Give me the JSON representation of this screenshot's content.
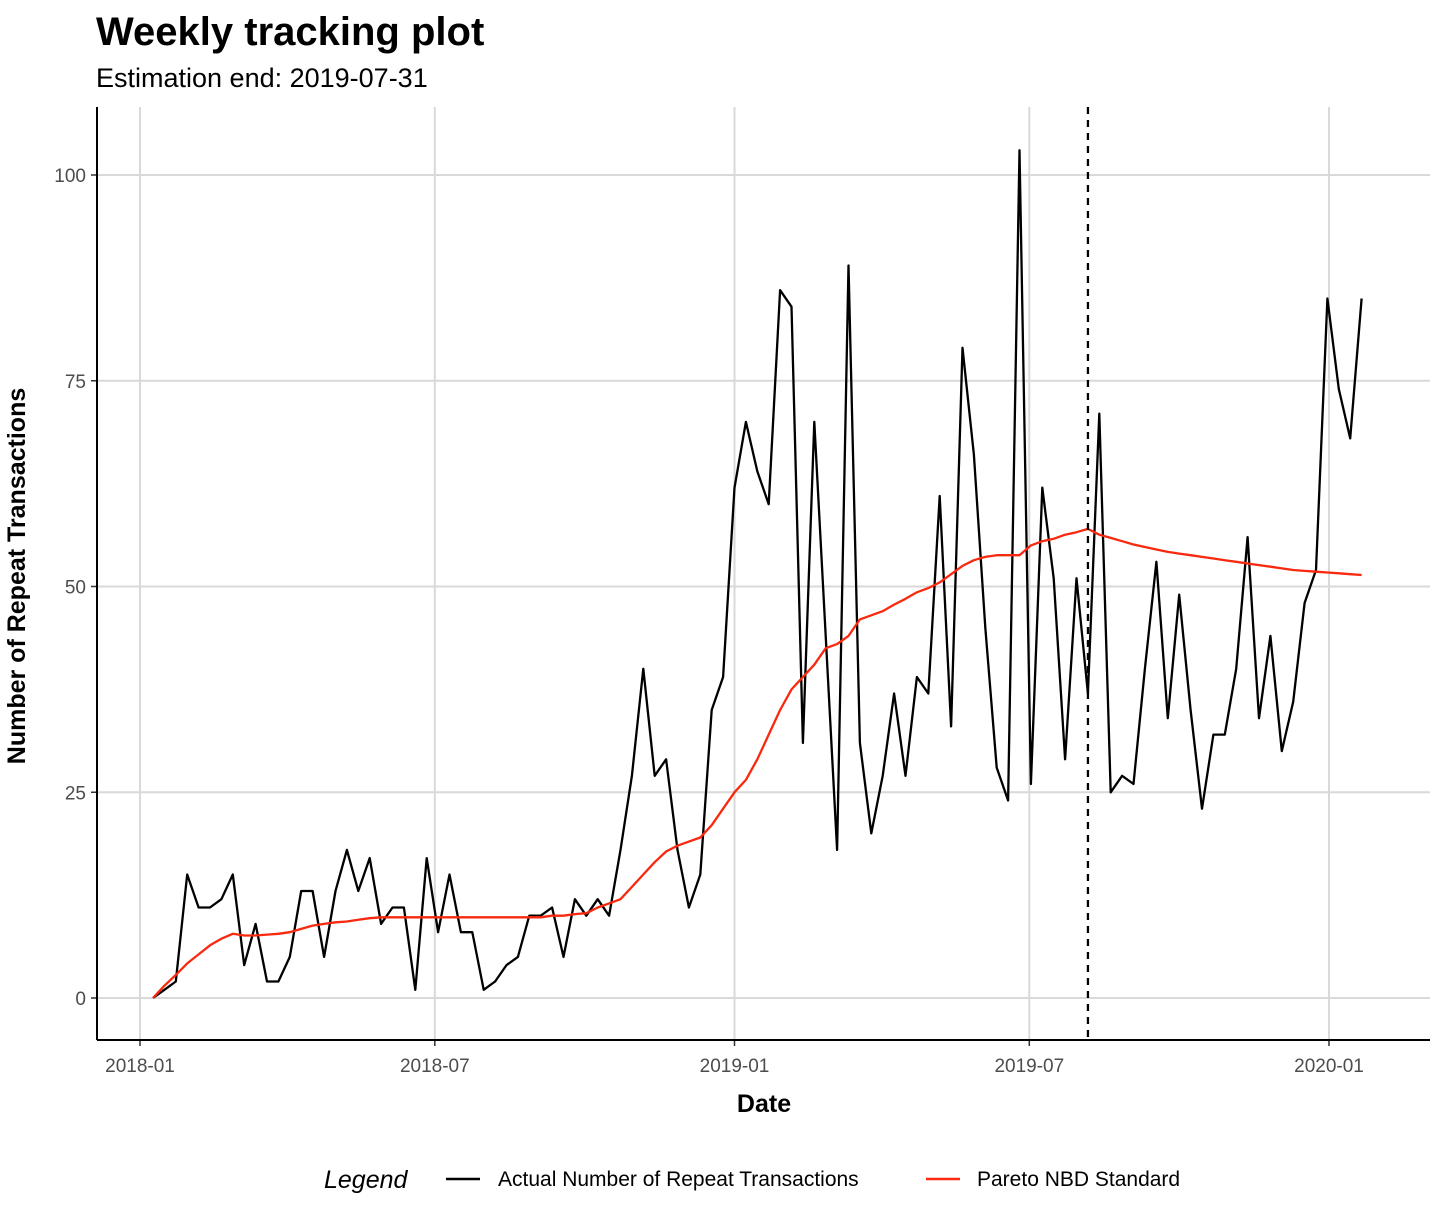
{
  "chart_data": {
    "type": "line",
    "title": "Weekly tracking plot",
    "subtitle": "Estimation end: 2019-07-31",
    "xlabel": "Date",
    "ylabel": "Number of Repeat Transactions",
    "x_ticks": [
      "2018-01",
      "2018-07",
      "2019-01",
      "2019-07",
      "2020-01"
    ],
    "y_ticks": [
      "0",
      "25",
      "50",
      "75",
      "100"
    ],
    "ylim": [
      -5,
      108
    ],
    "grid": true,
    "legend_position": "bottom",
    "legend_title": "Legend",
    "estimation_end": "2019-08-06",
    "x": [
      "2018-01-09",
      "2018-01-16",
      "2018-01-23",
      "2018-01-30",
      "2018-02-06",
      "2018-02-13",
      "2018-02-20",
      "2018-02-27",
      "2018-03-06",
      "2018-03-13",
      "2018-03-20",
      "2018-03-27",
      "2018-04-03",
      "2018-04-10",
      "2018-04-17",
      "2018-04-24",
      "2018-05-01",
      "2018-05-08",
      "2018-05-15",
      "2018-05-22",
      "2018-05-29",
      "2018-06-05",
      "2018-06-12",
      "2018-06-19",
      "2018-06-26",
      "2018-07-03",
      "2018-07-10",
      "2018-07-17",
      "2018-07-24",
      "2018-07-31",
      "2018-08-07",
      "2018-08-14",
      "2018-08-21",
      "2018-08-28",
      "2018-09-04",
      "2018-09-11",
      "2018-09-18",
      "2018-09-25",
      "2018-10-02",
      "2018-10-09",
      "2018-10-16",
      "2018-10-23",
      "2018-10-30",
      "2018-11-06",
      "2018-11-13",
      "2018-11-20",
      "2018-11-27",
      "2018-12-04",
      "2018-12-11",
      "2018-12-18",
      "2018-12-25",
      "2019-01-01",
      "2019-01-08",
      "2019-01-15",
      "2019-01-22",
      "2019-01-29",
      "2019-02-05",
      "2019-02-12",
      "2019-02-19",
      "2019-02-26",
      "2019-03-05",
      "2019-03-12",
      "2019-03-19",
      "2019-03-26",
      "2019-04-02",
      "2019-04-09",
      "2019-04-16",
      "2019-04-23",
      "2019-04-30",
      "2019-05-07",
      "2019-05-14",
      "2019-05-21",
      "2019-05-28",
      "2019-06-04",
      "2019-06-11",
      "2019-06-18",
      "2019-06-25",
      "2019-07-02",
      "2019-07-09",
      "2019-07-16",
      "2019-07-23",
      "2019-07-30",
      "2019-08-06",
      "2019-08-13",
      "2019-08-20",
      "2019-08-27",
      "2019-09-03",
      "2019-09-10",
      "2019-09-17",
      "2019-09-24",
      "2019-10-01",
      "2019-10-08",
      "2019-10-15",
      "2019-10-22",
      "2019-10-29",
      "2019-11-05",
      "2019-11-12",
      "2019-11-19",
      "2019-11-26",
      "2019-12-03",
      "2019-12-10",
      "2019-12-17",
      "2019-12-24",
      "2019-12-31",
      "2020-01-07",
      "2020-01-14",
      "2020-01-21"
    ],
    "series": [
      {
        "name": "Actual Number of Repeat Transactions",
        "color": "#000000",
        "values": [
          0,
          1,
          2,
          15,
          11,
          11,
          12,
          15,
          4,
          9,
          2,
          2,
          5,
          13,
          13,
          5,
          13,
          18,
          13,
          17,
          9,
          11,
          11,
          1,
          17,
          8,
          15,
          8,
          8,
          1,
          2,
          4,
          5,
          10,
          10,
          11,
          5,
          12,
          10,
          12,
          10,
          18,
          27,
          40,
          27,
          29,
          18,
          11,
          15,
          35,
          39,
          62,
          70,
          64,
          60,
          86,
          84,
          31,
          70,
          44,
          18,
          89,
          31,
          20,
          27,
          37,
          27,
          39,
          37,
          61,
          33,
          79,
          66,
          45,
          28,
          24,
          103,
          26,
          62,
          51,
          29,
          51,
          37,
          71,
          25,
          27,
          26,
          40,
          53,
          34,
          49,
          35,
          23,
          32,
          32,
          40,
          56,
          34,
          44,
          30,
          36,
          48,
          52,
          85,
          74,
          68,
          85
        ]
      },
      {
        "name": "Pareto NBD Standard",
        "color": "#f8290f",
        "values": [
          0,
          1.5,
          2.8,
          4.2,
          5.3,
          6.4,
          7.2,
          7.8,
          7.6,
          7.6,
          7.7,
          7.8,
          8.0,
          8.4,
          8.8,
          9.0,
          9.2,
          9.3,
          9.5,
          9.7,
          9.8,
          9.8,
          9.8,
          9.8,
          9.8,
          9.8,
          9.8,
          9.8,
          9.8,
          9.8,
          9.8,
          9.8,
          9.8,
          9.8,
          9.8,
          10.0,
          10.0,
          10.2,
          10.3,
          11.0,
          11.5,
          12.0,
          13.5,
          15.0,
          16.5,
          17.8,
          18.5,
          19.0,
          19.5,
          21.0,
          23.0,
          25.0,
          26.5,
          29.0,
          32.0,
          35.0,
          37.5,
          39.0,
          40.5,
          42.5,
          43.0,
          44.0,
          46.0,
          46.5,
          47.0,
          47.8,
          48.5,
          49.3,
          49.8,
          50.5,
          51.5,
          52.5,
          53.2,
          53.6,
          53.8,
          53.8,
          53.8,
          55.0,
          55.5,
          55.8,
          56.3,
          56.6,
          57.0,
          56.3,
          55.9,
          55.5,
          55.1,
          54.8,
          54.5,
          54.2,
          54.0,
          53.8,
          53.6,
          53.4,
          53.2,
          53.0,
          52.8,
          52.6,
          52.4,
          52.2,
          52.0,
          51.9,
          51.8,
          51.7,
          51.6,
          51.5,
          51.4
        ]
      }
    ]
  }
}
